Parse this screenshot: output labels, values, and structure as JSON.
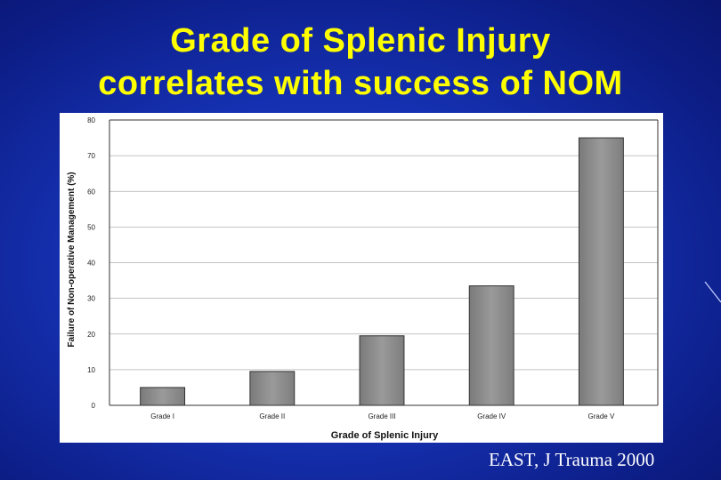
{
  "slide": {
    "title_line1": "Grade of Splenic Injury",
    "title_line2": "correlates with success of NOM",
    "citation": "EAST, J Trauma 2000",
    "colors": {
      "background": "#1530b0",
      "title": "#ffff00",
      "citation": "#ffffff"
    }
  },
  "chart_data": {
    "type": "bar",
    "categories": [
      "Grade I",
      "Grade II",
      "Grade III",
      "Grade IV",
      "Grade V"
    ],
    "values": [
      5,
      9.5,
      19.5,
      33.5,
      75
    ],
    "xlabel": "Grade of Splenic Injury",
    "ylabel": "Failure of Non-operative Management (%)",
    "ylim": [
      0,
      80
    ],
    "yticks": [
      0,
      10,
      20,
      30,
      40,
      50,
      60,
      70,
      80
    ],
    "grid": true,
    "legend": "none",
    "bar_color": "#8a8a8a"
  }
}
